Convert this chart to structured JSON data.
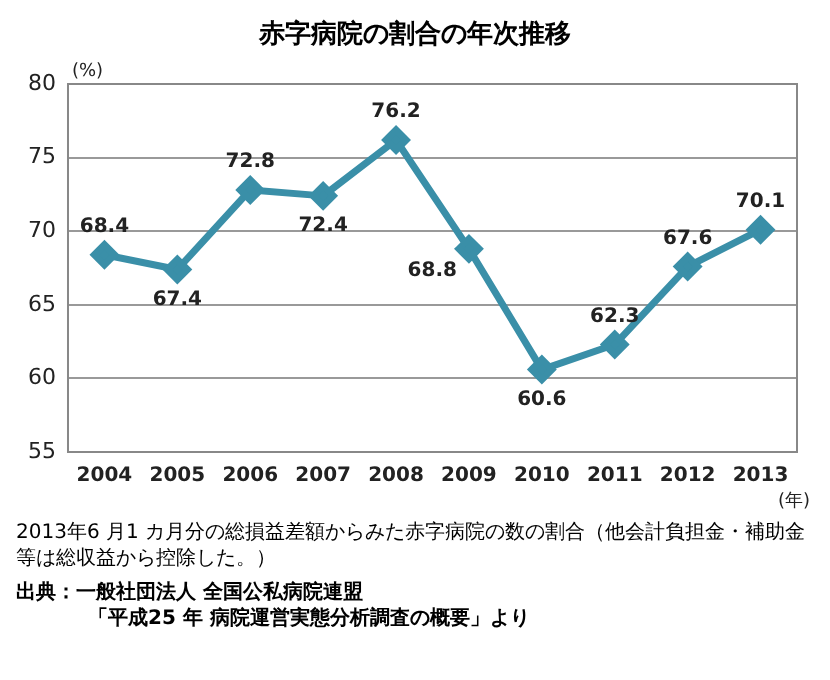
{
  "chart_data": {
    "type": "line",
    "title": "赤字病院の割合の年次推移",
    "ylabel": "(%)",
    "xlabel": "(年)",
    "categories": [
      "2004",
      "2005",
      "2006",
      "2007",
      "2008",
      "2009",
      "2010",
      "2011",
      "2012",
      "2013"
    ],
    "series": [
      {
        "color": "#3a8fa8",
        "values": [
          68.4,
          67.4,
          72.8,
          72.4,
          76.2,
          68.8,
          60.6,
          62.3,
          67.6,
          70.1
        ]
      }
    ],
    "ylim": [
      55,
      80
    ],
    "yticks": [
      55,
      60,
      65,
      70,
      75,
      80
    ],
    "grid": "y",
    "legend": false,
    "marker": "diamond",
    "line_style": "solid",
    "data_labels": true,
    "annotations": [
      "2013年6 月1 カ月分の総損益差額からみた赤字病院の数の割合（他会計負担金・補助金等は総収益から控除した。）",
      "出典：一般社団法人 全国公私病院連盟",
      "「平成25 年 病院運営実態分析調査の概要」より"
    ]
  }
}
